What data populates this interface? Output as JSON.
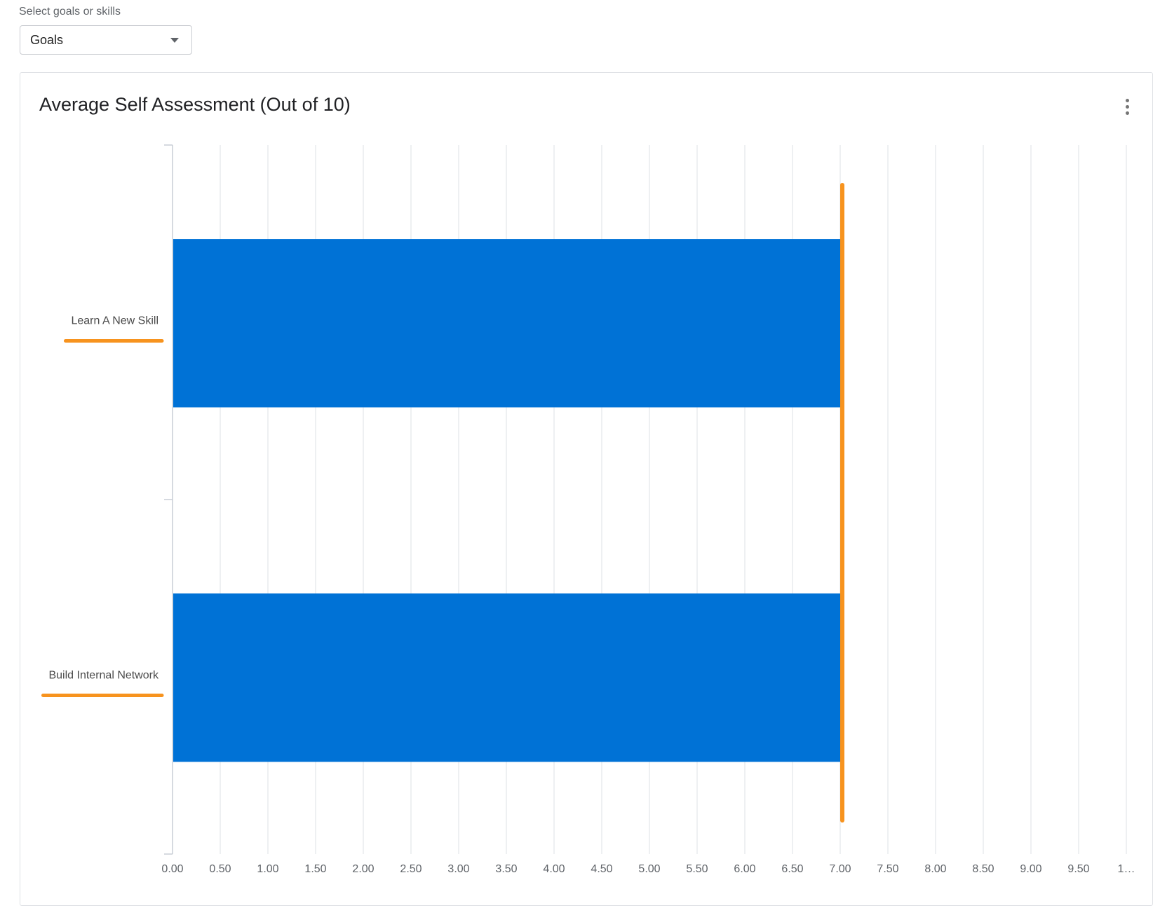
{
  "selector": {
    "label": "Select goals or skills",
    "value": "Goals"
  },
  "card": {
    "title": "Average Self Assessment (Out of 10)",
    "menu_icon": "more-vert-icon"
  },
  "colors": {
    "bar": "#0072d6",
    "reference_line": "#f7931e",
    "grid": "#e3e5ea",
    "axis": "#c9cdd6",
    "tick_text": "#5f6368",
    "category_text": "#4a4a4a"
  },
  "chart_data": {
    "type": "bar",
    "orientation": "horizontal",
    "title": "Average Self Assessment (Out of 10)",
    "categories": [
      "Learn A New Skill",
      "Build Internal Network"
    ],
    "values": [
      7.0,
      7.0
    ],
    "xlim": [
      0,
      10
    ],
    "x_ticks": [
      "0.00",
      "0.50",
      "1.00",
      "1.50",
      "2.00",
      "2.50",
      "3.00",
      "3.50",
      "4.00",
      "4.50",
      "5.00",
      "5.50",
      "6.00",
      "6.50",
      "7.00",
      "7.50",
      "8.00",
      "8.50",
      "9.00",
      "9.50",
      "1…"
    ],
    "reference_line": {
      "value": 7.0
    },
    "category_markers": "orange underline",
    "grid": true,
    "legend": "none"
  }
}
